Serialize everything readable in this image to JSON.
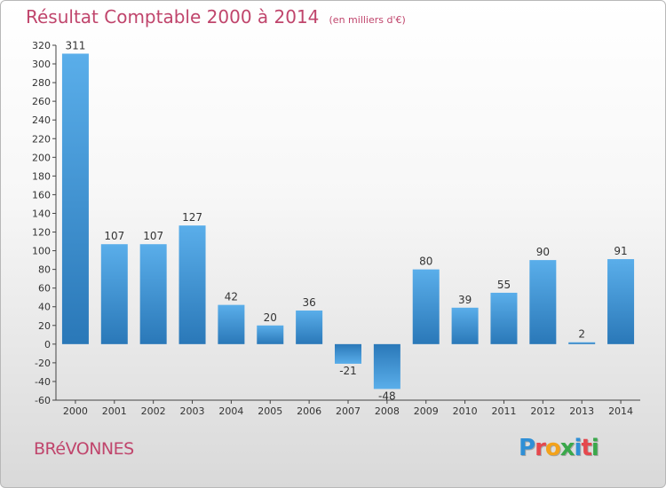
{
  "title": {
    "main": "Résultat Comptable 2000 à 2014",
    "unit": "(en milliers d'€)"
  },
  "commune": "BRéVONNES",
  "logo": {
    "text": "Proxiti",
    "colors": [
      "#2f8fd6",
      "#e5484d",
      "#f3a21b",
      "#3aa84b",
      "#2f8fd6",
      "#e5484d",
      "#3aa84b"
    ]
  },
  "chart_data": {
    "type": "bar",
    "categories": [
      "2000",
      "2001",
      "2002",
      "2003",
      "2004",
      "2005",
      "2006",
      "2007",
      "2008",
      "2009",
      "2010",
      "2011",
      "2012",
      "2013",
      "2014"
    ],
    "values": [
      311,
      107,
      107,
      127,
      42,
      20,
      36,
      -21,
      -48,
      80,
      39,
      55,
      90,
      2,
      91
    ],
    "data_labels": [
      "311",
      "107",
      "107",
      "127",
      "42",
      "20",
      "36",
      "-21",
      "-48",
      "80",
      "39",
      "55",
      "90",
      "2",
      "91"
    ],
    "ylim": [
      -60,
      320
    ],
    "ytick_step": 20,
    "grid": false,
    "colors": {
      "bar_light": "#5aaeea",
      "bar_dark": "#2a78b8"
    }
  }
}
